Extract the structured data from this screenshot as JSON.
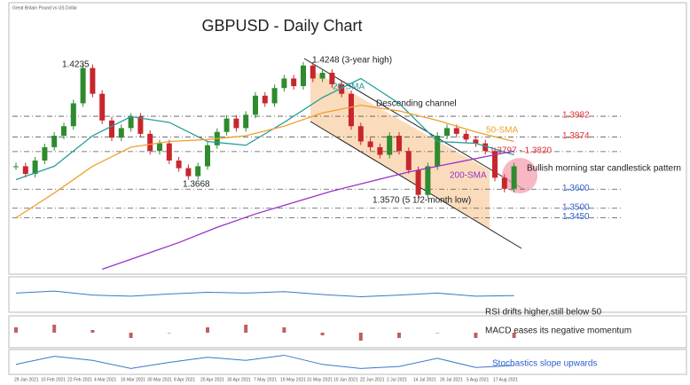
{
  "chart_data": {
    "type": "candlestick",
    "title": "GBPUSD - Daily Chart",
    "subtitle": "Great Britain Pound vs US Dollar",
    "ylim": [
      1.315,
      1.4545
    ],
    "candles": {
      "color_up": "#2e8b2e",
      "color_down": "#c8262d",
      "close": [
        1.372,
        1.368,
        1.375,
        1.382,
        1.388,
        1.393,
        1.405,
        1.4235,
        1.41,
        1.396,
        1.387,
        1.392,
        1.398,
        1.389,
        1.38,
        1.384,
        1.375,
        1.371,
        1.3668,
        1.372,
        1.383,
        1.39,
        1.397,
        1.392,
        1.399,
        1.409,
        1.405,
        1.413,
        1.418,
        1.414,
        1.4248,
        1.418,
        1.421,
        1.415,
        1.41,
        1.393,
        1.385,
        1.382,
        1.378,
        1.388,
        1.38,
        1.37,
        1.357,
        1.372,
        1.388,
        1.392,
        1.389,
        1.386,
        1.384,
        1.38,
        1.366,
        1.3602,
        1.372
      ]
    },
    "series": [
      {
        "name": "20-SMA",
        "color": "#2a9d9d",
        "x": [
          0,
          4,
          8,
          12,
          16,
          20,
          24,
          28,
          32,
          36,
          40,
          44,
          48,
          52
        ],
        "values": [
          1.365,
          1.372,
          1.388,
          1.398,
          1.395,
          1.385,
          1.383,
          1.395,
          1.408,
          1.418,
          1.405,
          1.385,
          1.384,
          1.378
        ]
      },
      {
        "name": "50-SMA",
        "color": "#f0a030",
        "x": [
          0,
          4,
          8,
          12,
          16,
          20,
          24,
          28,
          32,
          36,
          40,
          44,
          48,
          52
        ],
        "values": [
          1.345,
          1.358,
          1.372,
          1.382,
          1.385,
          1.386,
          1.388,
          1.393,
          1.4,
          1.404,
          1.401,
          1.396,
          1.39,
          1.385
        ]
      },
      {
        "name": "200-SMA",
        "color": "#9b30c8",
        "x": [
          9,
          13,
          17,
          21,
          25,
          29,
          33,
          37,
          41,
          45,
          49,
          52
        ],
        "values": [
          1.318,
          1.325,
          1.332,
          1.34,
          1.347,
          1.353,
          1.359,
          1.364,
          1.369,
          1.373,
          1.377,
          1.38
        ]
      }
    ],
    "levels": [
      {
        "value": 1.3982,
        "label": "1.3982",
        "color": "#e03030"
      },
      {
        "value": 1.3874,
        "label": "1.3874",
        "color": "#e03030"
      },
      {
        "value": 1.3797,
        "label": "1.3797 - 1.3820",
        "color": "#e03030"
      },
      {
        "value": 1.36,
        "label": "1.3600",
        "color": "#2b5fd0"
      },
      {
        "value": 1.35,
        "label": "1.3500",
        "color": "#2b5fd0"
      },
      {
        "value": 1.345,
        "label": "1.3450",
        "color": "#2b5fd0"
      }
    ],
    "annotations": [
      "1.4235",
      "1.4248 (3-year high)",
      "Descending channel",
      "1.3668",
      "1.3570 (5 1/2-month low)",
      "Bullish morning star candlestick pattern"
    ],
    "rsi": {
      "caption": "RSI drifts higher,still  below 50",
      "ylim": [
        0,
        100
      ],
      "values": [
        55,
        62,
        48,
        44,
        52,
        58,
        55,
        60,
        50,
        42,
        48,
        55,
        44,
        46
      ]
    },
    "macd": {
      "caption": "MACD eases its negative momentum",
      "ylim": [
        -0.005,
        0.005
      ],
      "values": [
        0.002,
        0.003,
        0.001,
        -0.002,
        0.0,
        0.002,
        0.003,
        0.002,
        -0.001,
        -0.003,
        -0.002,
        0.0,
        -0.002,
        -0.002
      ]
    },
    "stochastics": {
      "caption": "Stochastics slope upwards",
      "ylim": [
        0,
        100
      ],
      "values": [
        40,
        80,
        60,
        20,
        50,
        75,
        60,
        85,
        40,
        20,
        30,
        70,
        25,
        35
      ]
    },
    "indicator_x": [
      0,
      4,
      8,
      12,
      16,
      20,
      24,
      28,
      32,
      36,
      40,
      44,
      48,
      52
    ],
    "dates": [
      "29 Jan 2021",
      "10 Feb 2021",
      "22 Feb 2021",
      "4 Mar 2021",
      "16 Mar 2021",
      "30 Mar 2021",
      "8 Apr 2021",
      "20 Apr 2021",
      "30 Apr 2021",
      "7 May 2021",
      "19 May 2021",
      "31 May 2021",
      "10 Jun 2021",
      "22 Jun 2021",
      "2 Jul 2021",
      "14 Jul 2021",
      "26 Jul 2021",
      "5 Aug 2021",
      "17 Aug 2021"
    ]
  }
}
